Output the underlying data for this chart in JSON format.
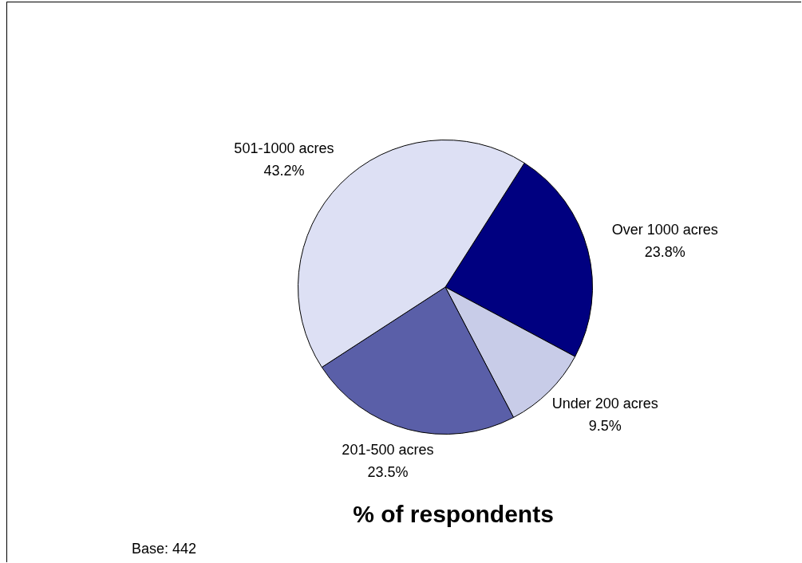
{
  "chart_data": {
    "type": "pie",
    "title": "% of respondents",
    "categories": [
      "Over 1000 acres",
      "Under 200 acres",
      "201-500 acres",
      "501-1000 acres"
    ],
    "values": [
      23.8,
      9.5,
      23.5,
      43.2
    ],
    "colors": [
      "#000080",
      "#c8cce8",
      "#5a5fa8",
      "#dde0f4"
    ],
    "value_labels": [
      "23.8%",
      "9.5%",
      "23.5%",
      "43.2%"
    ],
    "annotations": [
      "Base: 442"
    ],
    "legend": false
  }
}
